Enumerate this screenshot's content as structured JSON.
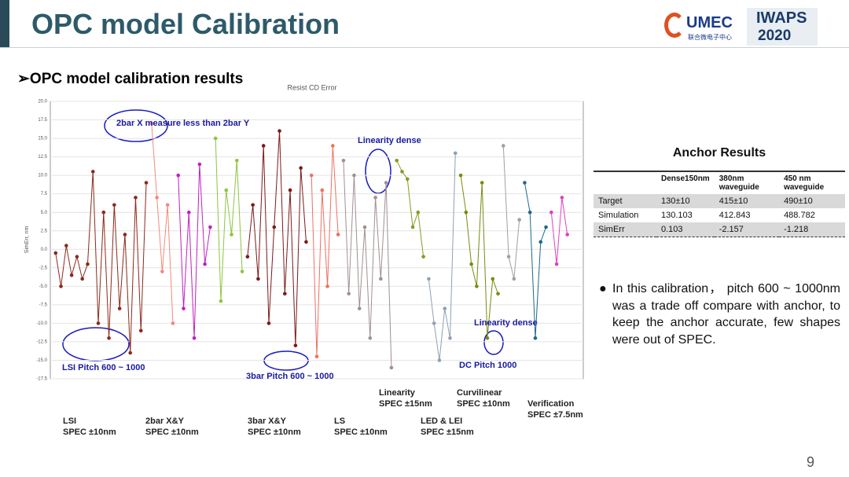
{
  "header": {
    "title": "OPC model Calibration",
    "logo_umec": "UMEC",
    "logo_umec_sub": "联合微电子中心",
    "logo_iwaps": "IWAPS",
    "logo_year": "2020"
  },
  "subtitle": "➢OPC model calibration results",
  "chart_data": {
    "type": "line",
    "title": "Resist CD Error",
    "y_label": "SimErr, nm",
    "xlim": [
      0,
      100
    ],
    "ylim": [
      -17.5,
      20
    ],
    "yticks": [
      {
        "value": -17.5,
        "label": "-17.5"
      },
      {
        "value": -15,
        "label": "-15.0"
      },
      -12.5,
      {
        "value": -10,
        "label": "-10.0"
      },
      -7.5,
      {
        "value": -5,
        "label": "-5.0"
      },
      -2.5,
      {
        "value": 0,
        "label": "0.0"
      },
      2.5,
      {
        "value": 5,
        "label": "5.0"
      },
      7.5,
      {
        "value": 10,
        "label": "10.0"
      },
      12.5,
      {
        "value": 15,
        "label": "15.0"
      },
      17.5,
      {
        "value": 20,
        "label": "20.0"
      }
    ],
    "grid": true,
    "series": [
      {
        "color": "#8b2a1a",
        "x": [
          1,
          2,
          3,
          4,
          5,
          6,
          7,
          8,
          9,
          10,
          11,
          12,
          13,
          14,
          15,
          16,
          17,
          18
        ],
        "values": [
          -0.5,
          -5,
          0.5,
          -3.5,
          -1,
          -4,
          -2,
          10.5,
          -10,
          5,
          -12,
          6,
          -8,
          2,
          -14,
          7,
          -11,
          9
        ]
      },
      {
        "color": "#f08a7a",
        "x": [
          19,
          20,
          21,
          22,
          23
        ],
        "values": [
          17,
          7,
          -3,
          6,
          -10
        ]
      },
      {
        "color": "#c020c0",
        "x": [
          24,
          25,
          26,
          27,
          28,
          29,
          30
        ],
        "values": [
          10,
          -8,
          5,
          -12,
          11.5,
          -2,
          3
        ]
      },
      {
        "color": "#8cc63f",
        "x": [
          31,
          32,
          33,
          34,
          35,
          36
        ],
        "values": [
          15,
          -7,
          8,
          2,
          12,
          -3
        ]
      },
      {
        "color": "#7a1a1a",
        "x": [
          37,
          38,
          39,
          40,
          41,
          42,
          43,
          44,
          45,
          46,
          47,
          48
        ],
        "values": [
          -1,
          6,
          -4,
          14,
          -10,
          3,
          16,
          -6,
          8,
          -13,
          11,
          1
        ]
      },
      {
        "color": "#f07060",
        "x": [
          49,
          50,
          51,
          52,
          53,
          54
        ],
        "values": [
          10,
          -14.5,
          8,
          -5,
          14,
          2
        ]
      },
      {
        "color": "#a09090",
        "x": [
          55,
          56,
          57,
          58,
          59,
          60,
          61,
          62,
          63,
          64
        ],
        "values": [
          12,
          -6,
          10,
          -8,
          3,
          -12,
          7,
          -4,
          9,
          -16
        ]
      },
      {
        "color": "#8a9a20",
        "x": [
          65,
          66,
          67,
          68,
          69,
          70
        ],
        "values": [
          12,
          10.5,
          9.5,
          3,
          5,
          -1
        ]
      },
      {
        "color": "#90a0b0",
        "x": [
          71,
          72,
          73,
          74,
          75,
          76
        ],
        "values": [
          -4,
          -10,
          -15,
          -8,
          -12,
          13
        ]
      },
      {
        "color": "#7a8a10",
        "x": [
          77,
          78,
          79,
          80,
          81,
          82,
          83,
          84
        ],
        "values": [
          10,
          5,
          -2,
          -5,
          9,
          -12,
          -4,
          -6
        ]
      },
      {
        "color": "#a0a0a0",
        "x": [
          85,
          86,
          87,
          88
        ],
        "values": [
          14,
          -1,
          -4,
          4
        ]
      },
      {
        "color": "#1a6a8a",
        "x": [
          89,
          90,
          91,
          92,
          93
        ],
        "values": [
          9,
          5,
          -12,
          1,
          3
        ]
      },
      {
        "color": "#e040c0",
        "x": [
          94,
          95,
          96,
          97
        ],
        "values": [
          5,
          -2,
          7,
          2
        ]
      }
    ],
    "annotations": [
      "2bar X measure less than 2bar Y",
      "Linearity dense",
      "LSI Pitch 600 ~ 1000",
      "3bar Pitch 600 ~ 1000",
      "Linearity dense",
      "DC Pitch 1000"
    ]
  },
  "chart_groups": [
    {
      "name": "LSI",
      "spec": "SPEC ±10nm"
    },
    {
      "name": "2bar X&Y",
      "spec": "SPEC ±10nm"
    },
    {
      "name": "3bar X&Y",
      "spec": "SPEC ±10nm"
    },
    {
      "name": "LS",
      "spec": "SPEC ±10nm"
    },
    {
      "name": "Linearity",
      "spec": "SPEC ±15nm"
    },
    {
      "name": "LED & LEI",
      "spec": "SPEC ±15nm"
    },
    {
      "name": "Curvilinear",
      "spec": "SPEC ±10nm"
    },
    {
      "name": "Verification",
      "spec": "SPEC ±7.5nm"
    }
  ],
  "table": {
    "title": "Anchor Results",
    "header": [
      "Dense150nm",
      "380nm waveguide",
      "450 nm waveguide"
    ],
    "rows": [
      [
        "Target",
        "130±10",
        "415±10",
        "490±10"
      ],
      [
        "Simulation",
        "130.103",
        "412.843",
        "488.782"
      ],
      [
        "SimErr",
        "0.103",
        "-2.157",
        "-1.218"
      ]
    ]
  },
  "bullet": "In this calibration， pitch 600 ~ 1000nm was a trade off compare with anchor, to keep the anchor accurate, few shapes were out of SPEC.",
  "page_number": 9
}
